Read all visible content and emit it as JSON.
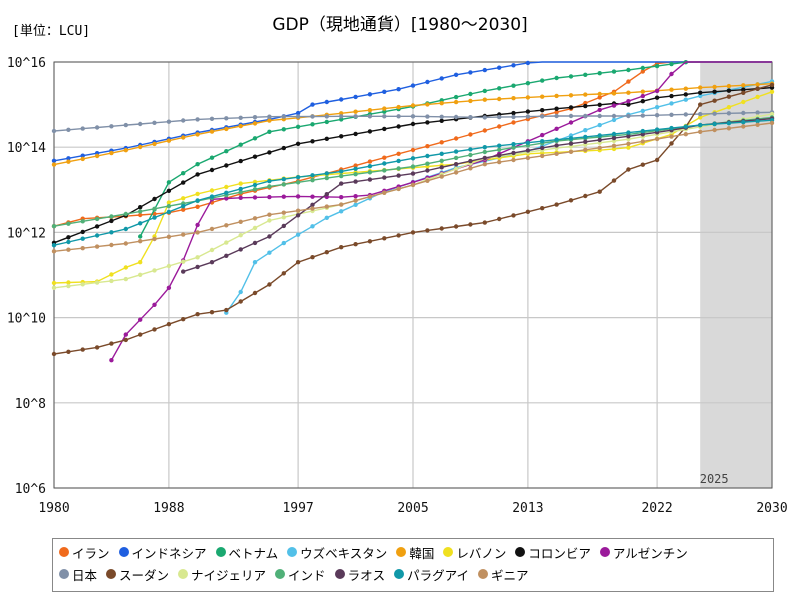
{
  "chart_data": {
    "type": "line",
    "title": "GDP（現地通貨）[1980～2030]",
    "unit_label": "[単位：LCU]",
    "y_scale": "log",
    "ylim": [
      1000000,
      10000000000000000
    ],
    "xlim": [
      1980,
      2030
    ],
    "x_ticks": [
      1980,
      1988,
      1997,
      2005,
      2013,
      2022,
      2030
    ],
    "x_tick_labels": [
      "1980",
      "1988",
      "1997",
      "2005",
      "2013",
      "2022",
      "2030"
    ],
    "y_ticks": [
      1000000,
      100000000,
      10000000000,
      1000000000000,
      100000000000000,
      10000000000000000
    ],
    "y_tick_labels": [
      "10^6",
      "10^8",
      "10^10",
      "10^12",
      "10^14",
      "10^16"
    ],
    "forecast_start": 2025,
    "forecast_label": "2025",
    "grid": true,
    "legend_position": "bottom",
    "series": [
      {
        "name": "イラン",
        "color": "#f06a1c",
        "start": 1980,
        "anchors": [
          [
            1980,
            1400000000000.0
          ],
          [
            1982,
            2100000000000.0
          ],
          [
            1985,
            2400000000000.0
          ],
          [
            1988,
            2900000000000.0
          ],
          [
            1990,
            4000000000000.0
          ],
          [
            1993,
            8000000000000.0
          ],
          [
            1997,
            16000000000000.0
          ],
          [
            2000,
            30000000000000.0
          ],
          [
            2004,
            70000000000000.0
          ],
          [
            2008,
            160000000000000.0
          ],
          [
            2012,
            380000000000000.0
          ],
          [
            2016,
            800000000000000.0
          ],
          [
            2019,
            2000000000000000.0
          ],
          [
            2021,
            6000000000000000.0
          ],
          [
            2023,
            1.4e+16
          ],
          [
            2025,
            2.6e+16
          ],
          [
            2030,
            7.5e+16
          ]
        ]
      },
      {
        "name": "インドネシア",
        "color": "#1f5fe0",
        "start": 1980,
        "anchors": [
          [
            1980,
            48000000000000.0
          ],
          [
            1985,
            95000000000000.0
          ],
          [
            1990,
            220000000000000.0
          ],
          [
            1995,
            450000000000000.0
          ],
          [
            1997,
            630000000000000.0
          ],
          [
            1998,
            1000000000000000.0
          ],
          [
            2004,
            2300000000000000.0
          ],
          [
            2008,
            5000000000000000.0
          ],
          [
            2013,
            9500000000000000.0
          ],
          [
            2019,
            1.6e+16
          ],
          [
            2020,
            1.55e+16
          ],
          [
            2025,
            2.3e+16
          ],
          [
            2030,
            3.4e+16
          ]
        ]
      },
      {
        "name": "ベトナム",
        "color": "#1aa870",
        "start": 1986,
        "anchors": [
          [
            1986,
            800000000000.0
          ],
          [
            1988,
            15000000000000.0
          ],
          [
            1990,
            40000000000000.0
          ],
          [
            1995,
            230000000000000.0
          ],
          [
            2000,
            450000000000000.0
          ],
          [
            2005,
            900000000000000.0
          ],
          [
            2010,
            2100000000000000.0
          ],
          [
            2015,
            4200000000000000.0
          ],
          [
            2020,
            6500000000000000.0
          ],
          [
            2025,
            1.1e+16
          ],
          [
            2030,
            1.6e+16
          ]
        ]
      },
      {
        "name": "ウズベキスタン",
        "color": "#52c0e8",
        "start": 1992,
        "anchors": [
          [
            1992,
            13000000000.0
          ],
          [
            1993,
            40000000000.0
          ],
          [
            1994,
            200000000000.0
          ],
          [
            1996,
            560000000000.0
          ],
          [
            1999,
            2200000000000.0
          ],
          [
            2003,
            9000000000000.0
          ],
          [
            2008,
            33000000000000.0
          ],
          [
            2013,
            80000000000000.0
          ],
          [
            2017,
            250000000000000.0
          ],
          [
            2020,
            580000000000000.0
          ],
          [
            2025,
            1600000000000000.0
          ],
          [
            2030,
            3500000000000000.0
          ]
        ]
      },
      {
        "name": "韓国",
        "color": "#f0a010",
        "start": 1980,
        "anchors": [
          [
            1980,
            39000000000000.0
          ],
          [
            1985,
            85000000000000.0
          ],
          [
            1990,
            200000000000000.0
          ],
          [
            1995,
            420000000000000.0
          ],
          [
            1998,
            530000000000000.0
          ],
          [
            2005,
            950000000000000.0
          ],
          [
            2010,
            1300000000000000.0
          ],
          [
            2015,
            1600000000000000.0
          ],
          [
            2020,
            1900000000000000.0
          ],
          [
            2025,
            2500000000000000.0
          ],
          [
            2030,
            3100000000000000.0
          ]
        ]
      },
      {
        "name": "レバノン",
        "color": "#f0e020",
        "start": 1980,
        "anchors": [
          [
            1980,
            65000000000.0
          ],
          [
            1983,
            70000000000.0
          ],
          [
            1985,
            150000000000.0
          ],
          [
            1986,
            200000000000.0
          ],
          [
            1987,
            800000000000.0
          ],
          [
            1988,
            5000000000000.0
          ],
          [
            1990,
            8000000000000.0
          ],
          [
            1993,
            14000000000000.0
          ],
          [
            1997,
            20000000000000.0
          ],
          [
            2003,
            29000000000000.0
          ],
          [
            2008,
            40000000000000.0
          ],
          [
            2013,
            70000000000000.0
          ],
          [
            2018,
            85000000000000.0
          ],
          [
            2020,
            98000000000000.0
          ],
          [
            2023,
            200000000000000.0
          ],
          [
            2025,
            500000000000000.0
          ],
          [
            2030,
            2000000000000000.0
          ]
        ]
      },
      {
        "name": "コロンビア",
        "color": "#111111",
        "start": 1980,
        "anchors": [
          [
            1980,
            570000000000.0
          ],
          [
            1985,
            2500000000000.0
          ],
          [
            1990,
            23000000000000.0
          ],
          [
            1994,
            60000000000000.0
          ],
          [
            1997,
            120000000000000.0
          ],
          [
            2000,
            180000000000000.0
          ],
          [
            2005,
            350000000000000.0
          ],
          [
            2010,
            540000000000000.0
          ],
          [
            2015,
            800000000000000.0
          ],
          [
            2019,
            1060000000000000.0
          ],
          [
            2020,
            1000000000000000.0
          ],
          [
            2022,
            1450000000000000.0
          ],
          [
            2025,
            1900000000000000.0
          ],
          [
            2030,
            2500000000000000.0
          ]
        ]
      },
      {
        "name": "アルゼンチン",
        "color": "#9b1a9b",
        "start": 1984,
        "anchors": [
          [
            1984,
            1000000000.0
          ],
          [
            1985,
            4000000000.0
          ],
          [
            1987,
            20000000000.0
          ],
          [
            1988,
            50000000000.0
          ],
          [
            1989,
            220000000000.0
          ],
          [
            1990,
            1500000000000.0
          ],
          [
            1991,
            6000000000000.0
          ],
          [
            1993,
            6500000000000.0
          ],
          [
            1997,
            7000000000000.0
          ],
          [
            2000,
            6700000000000.0
          ],
          [
            2002,
            7500000000000.0
          ],
          [
            2005,
            15000000000000.0
          ],
          [
            2010,
            50000000000000.0
          ],
          [
            2015,
            270000000000000.0
          ],
          [
            2018,
            750000000000000.0
          ],
          [
            2020,
            1200000000000000.0
          ],
          [
            2022,
            2100000000000000.0
          ],
          [
            2024,
            1.3e+16
          ],
          [
            2025,
            3.5e+16
          ],
          [
            2026,
            5e+16
          ],
          [
            2030,
            7e+16
          ]
        ]
      },
      {
        "name": "日本",
        "color": "#8090a8",
        "start": 1980,
        "anchors": [
          [
            1980,
            240000000000000.0
          ],
          [
            1985,
            330000000000000.0
          ],
          [
            1990,
            450000000000000.0
          ],
          [
            1995,
            520000000000000.0
          ],
          [
            2000,
            530000000000000.0
          ],
          [
            2005,
            530000000000000.0
          ],
          [
            2010,
            500000000000000.0
          ],
          [
            2015,
            540000000000000.0
          ],
          [
            2020,
            540000000000000.0
          ],
          [
            2025,
            600000000000000.0
          ],
          [
            2030,
            660000000000000.0
          ]
        ]
      },
      {
        "name": "スーダン",
        "color": "#7a4a2a",
        "start": 1980,
        "anchors": [
          [
            1980,
            1400000000.0
          ],
          [
            1983,
            2000000000.0
          ],
          [
            1985,
            3000000000.0
          ],
          [
            1988,
            7000000000.0
          ],
          [
            1990,
            12000000000.0
          ],
          [
            1992,
            15000000000.0
          ],
          [
            1995,
            60000000000.0
          ],
          [
            1997,
            200000000000.0
          ],
          [
            2000,
            450000000000.0
          ],
          [
            2005,
            1000000000000.0
          ],
          [
            2010,
            1700000000000.0
          ],
          [
            2015,
            4500000000000.0
          ],
          [
            2018,
            9000000000000.0
          ],
          [
            2020,
            30000000000000.0
          ],
          [
            2022,
            50000000000000.0
          ],
          [
            2024,
            300000000000000.0
          ],
          [
            2025,
            1000000000000000.0
          ],
          [
            2030,
            2900000000000000.0
          ]
        ]
      },
      {
        "name": "ナイジェリア",
        "color": "#d8e890",
        "start": 1980,
        "anchors": [
          [
            1980,
            50000000000.0
          ],
          [
            1985,
            80000000000.0
          ],
          [
            1990,
            260000000000.0
          ],
          [
            1995,
            1900000000000.0
          ],
          [
            2000,
            4500000000000.0
          ],
          [
            2005,
            13000000000000.0
          ],
          [
            2010,
            55000000000000.0
          ],
          [
            2015,
            95000000000000.0
          ],
          [
            2020,
            154000000000000.0
          ],
          [
            2023,
            230000000000000.0
          ],
          [
            2025,
            300000000000000.0
          ],
          [
            2030,
            600000000000000.0
          ]
        ]
      },
      {
        "name": "インド",
        "color": "#50b078",
        "start": 1980,
        "anchors": [
          [
            1980,
            1400000000000.0
          ],
          [
            1985,
            2700000000000.0
          ],
          [
            1990,
            5500000000000.0
          ],
          [
            1995,
            12000000000000.0
          ],
          [
            2000,
            21000000000000.0
          ],
          [
            2005,
            35000000000000.0
          ],
          [
            2010,
            77000000000000.0
          ],
          [
            2015,
            140000000000000.0
          ],
          [
            2020,
            200000000000000.0
          ],
          [
            2025,
            330000000000000.0
          ],
          [
            2030,
            500000000000000.0
          ]
        ]
      },
      {
        "name": "ラオス",
        "color": "#5a3a5a",
        "start": 1989,
        "anchors": [
          [
            1989,
            120000000000.0
          ],
          [
            1991,
            200000000000.0
          ],
          [
            1995,
            800000000000.0
          ],
          [
            2000,
            14000000000000.0
          ],
          [
            2005,
            24000000000000.0
          ],
          [
            2010,
            56000000000000.0
          ],
          [
            2015,
            110000000000000.0
          ],
          [
            2020,
            180000000000000.0
          ],
          [
            2023,
            250000000000000.0
          ],
          [
            2025,
            330000000000000.0
          ],
          [
            2030,
            470000000000000.0
          ]
        ]
      },
      {
        "name": "パラグアイ",
        "color": "#1098a8",
        "start": 1980,
        "anchors": [
          [
            1980,
            500000000000.0
          ],
          [
            1985,
            1200000000000.0
          ],
          [
            1990,
            5600000000000.0
          ],
          [
            1995,
            16000000000000.0
          ],
          [
            2000,
            27000000000000.0
          ],
          [
            2005,
            55000000000000.0
          ],
          [
            2010,
            100000000000000.0
          ],
          [
            2015,
            150000000000000.0
          ],
          [
            2020,
            220000000000000.0
          ],
          [
            2025,
            330000000000000.0
          ],
          [
            2030,
            430000000000000.0
          ]
        ]
      },
      {
        "name": "ギニア",
        "color": "#c09060",
        "start": 1980,
        "anchors": [
          [
            1980,
            360000000000.0
          ],
          [
            1985,
            550000000000.0
          ],
          [
            1990,
            1000000000000.0
          ],
          [
            1995,
            2600000000000.0
          ],
          [
            2000,
            4500000000000.0
          ],
          [
            2005,
            13000000000000.0
          ],
          [
            2010,
            40000000000000.0
          ],
          [
            2015,
            70000000000000.0
          ],
          [
            2020,
            120000000000000.0
          ],
          [
            2025,
            230000000000000.0
          ],
          [
            2030,
            370000000000000.0
          ]
        ]
      }
    ]
  }
}
